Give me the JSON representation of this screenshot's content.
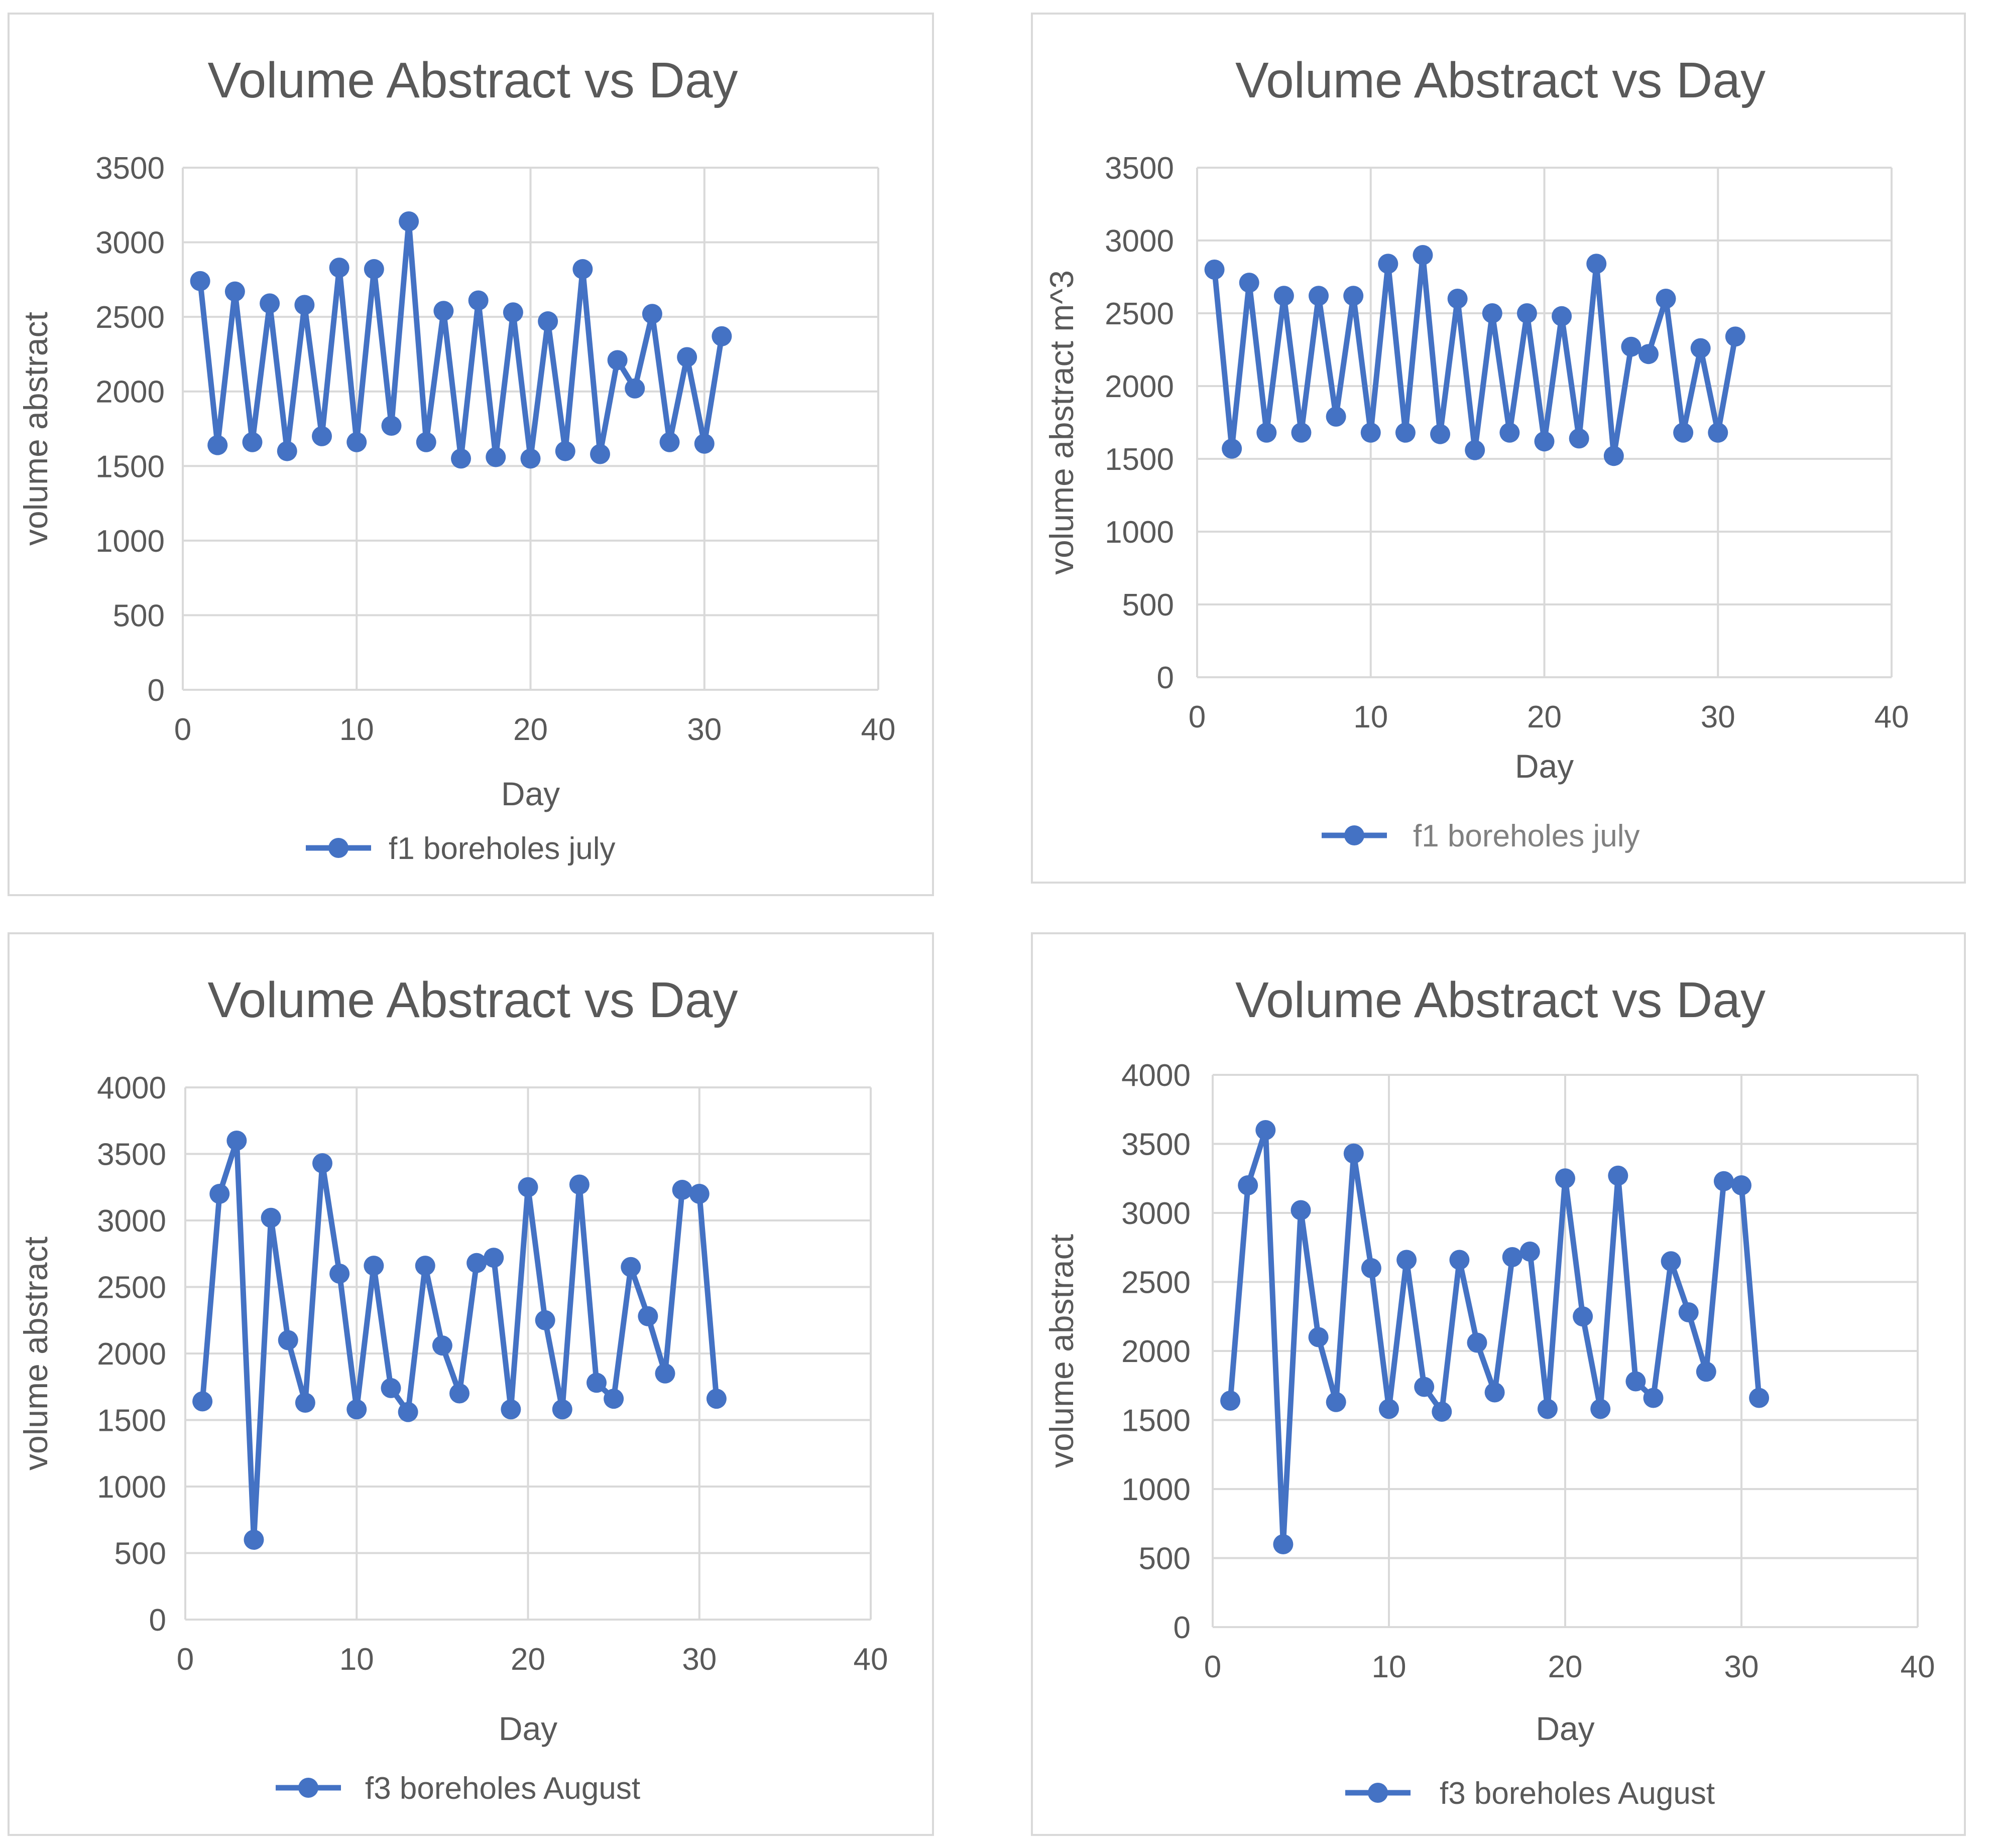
{
  "chart_data": [
    {
      "type": "scatter",
      "title": "Volume Abstract vs Day",
      "xlabel": "Day",
      "ylabel": "volume abstract",
      "xlim": [
        0,
        40
      ],
      "ylim": [
        0,
        3500
      ],
      "xticks": [
        0,
        10,
        20,
        30,
        40
      ],
      "yticks": [
        0,
        500,
        1000,
        1500,
        2000,
        2500,
        3000,
        3500
      ],
      "grid": true,
      "legend": "bottom",
      "series": [
        {
          "name": "f1 boreholes july",
          "color": "#4472c4",
          "x": [
            1,
            2,
            3,
            4,
            5,
            6,
            7,
            8,
            9,
            10,
            11,
            12,
            13,
            14,
            15,
            16,
            17,
            18,
            19,
            20,
            21,
            22,
            23,
            24,
            25,
            26,
            27,
            28,
            29,
            30,
            31
          ],
          "y": [
            2740,
            1640,
            2670,
            1660,
            2590,
            1600,
            2580,
            1700,
            2830,
            1660,
            2820,
            1770,
            3140,
            1660,
            2540,
            1550,
            2610,
            1560,
            2530,
            1550,
            2470,
            1600,
            2820,
            1580,
            2210,
            2020,
            2520,
            1660,
            2230,
            1650,
            2370
          ]
        }
      ]
    },
    {
      "type": "scatter",
      "title": "Volume Abstract vs Day",
      "xlabel": "Day",
      "ylabel": "volume abstract m^3",
      "xlim": [
        0,
        40
      ],
      "ylim": [
        0,
        3500
      ],
      "xticks": [
        0,
        10,
        20,
        30,
        40
      ],
      "yticks": [
        0,
        500,
        1000,
        1500,
        2000,
        2500,
        3000,
        3500
      ],
      "grid": true,
      "legend": "bottom",
      "series": [
        {
          "name": "f1 boreholes july",
          "color": "#4472c4",
          "x": [
            1,
            2,
            3,
            4,
            5,
            6,
            7,
            8,
            9,
            10,
            11,
            12,
            13,
            14,
            15,
            16,
            17,
            18,
            19,
            20,
            21,
            22,
            23,
            24,
            25,
            26,
            27,
            28,
            29,
            30,
            31
          ],
          "y": [
            2800,
            1570,
            2710,
            1680,
            2620,
            1680,
            2620,
            1790,
            2620,
            1680,
            2840,
            1680,
            2900,
            1670,
            2600,
            1560,
            2500,
            1680,
            2500,
            1620,
            2480,
            1640,
            2840,
            1520,
            2270,
            2220,
            2600,
            1680,
            2260,
            1680,
            2340
          ]
        }
      ]
    },
    {
      "type": "scatter",
      "title": "Volume Abstract vs Day",
      "xlabel": "Day",
      "ylabel": "volume abstract",
      "xlim": [
        0,
        40
      ],
      "ylim": [
        0,
        4000
      ],
      "xticks": [
        0,
        10,
        20,
        30,
        40
      ],
      "yticks": [
        0,
        500,
        1000,
        1500,
        2000,
        2500,
        3000,
        3500,
        4000
      ],
      "grid": true,
      "legend": "bottom",
      "series": [
        {
          "name": "f3 boreholes August",
          "color": "#4472c4",
          "x": [
            1,
            2,
            3,
            4,
            5,
            6,
            7,
            8,
            9,
            10,
            11,
            12,
            13,
            14,
            15,
            16,
            17,
            18,
            19,
            20,
            21,
            22,
            23,
            24,
            25,
            26,
            27,
            28,
            29,
            30,
            31
          ],
          "y": [
            1640,
            3200,
            3600,
            600,
            3020,
            2100,
            1630,
            3430,
            2600,
            1580,
            2660,
            1740,
            1560,
            2660,
            2060,
            1700,
            2680,
            2720,
            1580,
            3250,
            2250,
            1580,
            3270,
            1780,
            1660,
            2650,
            2280,
            1850,
            3230,
            3200,
            1660
          ]
        }
      ]
    },
    {
      "type": "scatter",
      "title": "Volume Abstract vs Day",
      "xlabel": "Day",
      "ylabel": "volume abstract",
      "xlim": [
        0,
        40
      ],
      "ylim": [
        0,
        4000
      ],
      "xticks": [
        0,
        10,
        20,
        30,
        40
      ],
      "yticks": [
        0,
        500,
        1000,
        1500,
        2000,
        2500,
        3000,
        3500,
        4000
      ],
      "grid": true,
      "legend": "bottom",
      "series": [
        {
          "name": "f3 boreholes August",
          "color": "#4472c4",
          "x": [
            1,
            2,
            3,
            4,
            5,
            6,
            7,
            8,
            9,
            10,
            11,
            12,
            13,
            14,
            15,
            16,
            17,
            18,
            19,
            20,
            21,
            22,
            23,
            24,
            25,
            26,
            27,
            28,
            29,
            30,
            31
          ],
          "y": [
            1640,
            3200,
            3600,
            600,
            3020,
            2100,
            1630,
            3430,
            2600,
            1580,
            2660,
            1740,
            1560,
            2660,
            2060,
            1700,
            2680,
            2720,
            1580,
            3250,
            2250,
            1580,
            3270,
            1780,
            1660,
            2650,
            2280,
            1850,
            3230,
            3200,
            1660
          ]
        }
      ]
    }
  ]
}
